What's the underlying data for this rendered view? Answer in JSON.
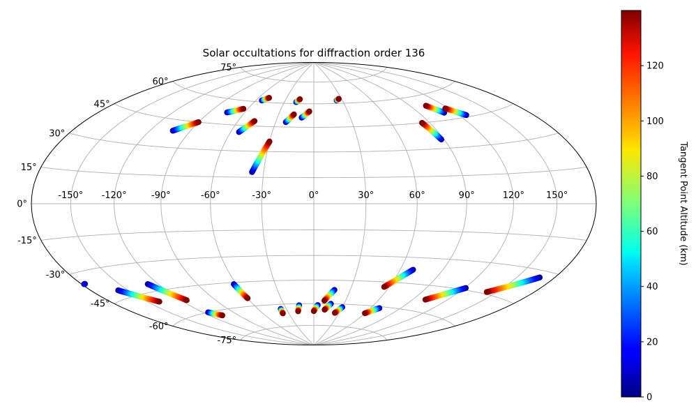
{
  "chart_data": {
    "type": "scatter",
    "projection": "hammer",
    "title": "Solar occultations for diffraction order 136",
    "grid": true,
    "lon_ticks": [
      -150,
      -120,
      -90,
      -60,
      -30,
      0,
      30,
      60,
      90,
      120,
      150
    ],
    "lon_tick_labels": [
      "-150°",
      "-120°",
      "-90°",
      "-60°",
      "-30°",
      "0°",
      "30°",
      "60°",
      "90°",
      "120°",
      "150°"
    ],
    "lat_ticks": [
      75,
      60,
      45,
      30,
      15,
      0,
      -15,
      -30,
      -45,
      -60,
      -75
    ],
    "lat_tick_labels": [
      "75°",
      "60°",
      "45°",
      "30°",
      "15°",
      "0°",
      "-15°",
      "-30°",
      "-45°",
      "-60°",
      "-75°"
    ],
    "colorbar": {
      "label": "Tangent Point Altitude (km)",
      "colormap": "jet",
      "range": [
        0,
        140
      ],
      "ticks": [
        0,
        20,
        40,
        60,
        80,
        100,
        120
      ],
      "tick_labels": [
        "0",
        "20",
        "40",
        "60",
        "80",
        "100",
        "120"
      ]
    },
    "series": [
      {
        "lon_start": -103,
        "lat_start": 39,
        "alt_start": 0,
        "lon_end": -90,
        "lat_end": 45,
        "alt_end": 140
      },
      {
        "lon_start": -75,
        "lat_start": 52,
        "alt_start": 0,
        "lon_end": -64,
        "lat_end": 55,
        "alt_end": 140
      },
      {
        "lon_start": -54,
        "lat_start": 41,
        "alt_start": 0,
        "lon_end": -47,
        "lat_end": 48,
        "alt_end": 140
      },
      {
        "lon_start": -54,
        "lat_start": 61,
        "alt_start": 0,
        "lon_end": -49,
        "lat_end": 63,
        "alt_end": 140
      },
      {
        "lon_start": -37,
        "lat_start": 18,
        "alt_start": 0,
        "lon_end": -30,
        "lat_end": 36,
        "alt_end": 140
      },
      {
        "lon_start": -22,
        "lat_start": 48,
        "alt_start": 0,
        "lon_end": -17,
        "lat_end": 53,
        "alt_end": 140
      },
      {
        "lon_start": -18,
        "lat_start": 61,
        "alt_start": 0,
        "lon_end": -15,
        "lat_end": 63,
        "alt_end": 140
      },
      {
        "lon_start": -10,
        "lat_start": 51,
        "alt_start": 0,
        "lon_end": -4,
        "lat_end": 55,
        "alt_end": 140
      },
      {
        "lon_start": 24,
        "lat_start": 62,
        "alt_start": 0,
        "lon_end": 27,
        "lat_end": 63,
        "alt_end": 140
      },
      {
        "lon_start": 88,
        "lat_start": 35,
        "alt_start": 0,
        "lon_end": 84,
        "lat_end": 45,
        "alt_end": 140
      },
      {
        "lon_start": 111,
        "lat_start": 49,
        "alt_start": 0,
        "lon_end": 104,
        "lat_end": 54,
        "alt_end": 140
      },
      {
        "lon_start": 126,
        "lat_start": 46,
        "alt_start": 0,
        "lon_end": 117,
        "lat_end": 51,
        "alt_end": 140
      },
      {
        "lon_start": -178,
        "lat_start": -35,
        "alt_start": 0,
        "lon_end": -177,
        "lat_end": -35,
        "alt_end": 10
      },
      {
        "lon_start": -158,
        "lat_start": -41,
        "alt_start": 0,
        "lon_end": -140,
        "lat_end": -50,
        "alt_end": 140
      },
      {
        "lon_start": -128,
        "lat_start": -41,
        "alt_start": 0,
        "lon_end": -115,
        "lat_end": -52,
        "alt_end": 140
      },
      {
        "lon_start": -115,
        "lat_start": -60,
        "alt_start": 0,
        "lon_end": -107,
        "lat_end": -63,
        "alt_end": 140
      },
      {
        "lon_start": -62,
        "lat_start": -46,
        "alt_start": 0,
        "lon_end": -60,
        "lat_end": -55,
        "alt_end": 140
      },
      {
        "lon_start": -36,
        "lat_start": -63,
        "alt_start": 0,
        "lon_end": -37,
        "lat_end": -66,
        "alt_end": 140
      },
      {
        "lon_start": -15,
        "lat_start": -61,
        "alt_start": 0,
        "lon_end": -18,
        "lat_end": -65,
        "alt_end": 140
      },
      {
        "lon_start": 4,
        "lat_start": -61,
        "alt_start": 0,
        "lon_end": 0,
        "lat_end": -65,
        "alt_end": 140
      },
      {
        "lon_start": 17,
        "lat_start": -51,
        "alt_start": 0,
        "lon_end": 10,
        "lat_end": -58,
        "alt_end": 140
      },
      {
        "lon_start": 17,
        "lat_start": -60,
        "alt_start": 0,
        "lon_end": 12,
        "lat_end": -64,
        "alt_end": 140
      },
      {
        "lon_start": 30,
        "lat_start": -62,
        "alt_start": 0,
        "lon_end": 25,
        "lat_end": -66,
        "alt_end": 140
      },
      {
        "lon_start": 69,
        "lat_start": -37,
        "alt_start": 0,
        "lon_end": 56,
        "lat_end": -48,
        "alt_end": 140
      },
      {
        "lon_start": 69,
        "lat_start": -61,
        "alt_start": 0,
        "lon_end": 60,
        "lat_end": -65,
        "alt_end": 140
      },
      {
        "lon_start": 121,
        "lat_start": -44,
        "alt_start": 0,
        "lon_end": 101,
        "lat_end": -53,
        "alt_end": 140
      },
      {
        "lon_start": 168,
        "lat_start": -33,
        "alt_start": 0,
        "lon_end": 142,
        "lat_end": -44,
        "alt_end": 140
      }
    ]
  }
}
